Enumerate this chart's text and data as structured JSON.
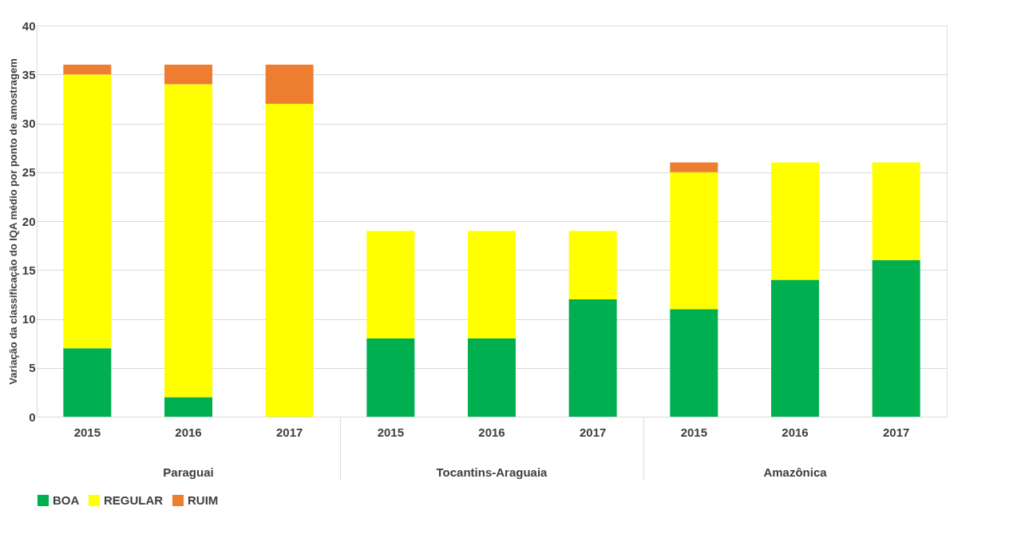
{
  "chart_data": {
    "type": "bar",
    "stacked": true,
    "ylabel": "Variação da classificação  do IQA médio por ponto de amostragem",
    "categories": [
      "2015",
      "2016",
      "2017",
      "2015",
      "2016",
      "2017",
      "2015",
      "2016",
      "2017"
    ],
    "annotations": [
      "Paraguai",
      "Tocantins-Araguaia",
      "Amazônica"
    ],
    "series": [
      {
        "name": "BOA",
        "color": "#00b050",
        "values": [
          7,
          2,
          0,
          8,
          8,
          12,
          11,
          14,
          16
        ]
      },
      {
        "name": "REGULAR",
        "color": "#ffff00",
        "values": [
          28,
          32,
          32,
          11,
          11,
          7,
          14,
          12,
          10
        ]
      },
      {
        "name": "RUIM",
        "color": "#ed7d31",
        "values": [
          1,
          2,
          4,
          0,
          0,
          0,
          1,
          0,
          0
        ]
      }
    ],
    "ylim": [
      0,
      40
    ],
    "yticks": [
      0,
      5,
      10,
      15,
      20,
      25,
      30,
      35,
      40
    ],
    "grid": "y",
    "legend": "bottom"
  }
}
